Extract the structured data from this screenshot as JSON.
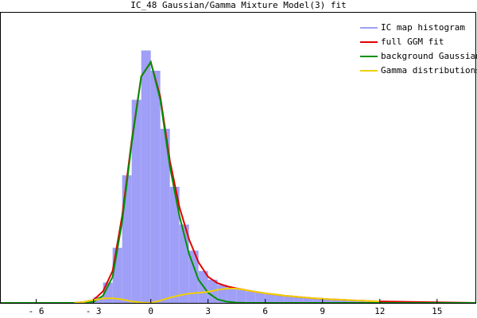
{
  "chart_data": {
    "type": "histogram",
    "title": "IC_48 Gaussian/Gamma Mixture Model(3) fit",
    "bins": [
      -3.5,
      -3,
      -2.5,
      -2,
      -1.5,
      -1,
      -0.5,
      0,
      0.5,
      1,
      1.5,
      2,
      2.5,
      3,
      3.5,
      4,
      4.5,
      5,
      5.5,
      6,
      6.5,
      7,
      7.5,
      8,
      8.5,
      9,
      9.5,
      10,
      10.5,
      11,
      11.5
    ],
    "series": [
      {
        "name": "IC map histogram",
        "color": "#9f9ff7",
        "values": [
          0.006,
          0.02,
          0.07,
          0.19,
          0.44,
          0.7,
          0.87,
          0.8,
          0.6,
          0.4,
          0.27,
          0.18,
          0.11,
          0.08,
          0.062,
          0.053,
          0.046,
          0.04,
          0.035,
          0.031,
          0.027,
          0.023,
          0.02,
          0.018,
          0.015,
          0.013,
          0.011,
          0.01,
          0.008,
          0.006
        ]
      },
      {
        "name": "full GGM fit",
        "color": "#e00000",
        "x": [
          -7.9,
          -4,
          -3.5,
          -3,
          -2.5,
          -2,
          -1.5,
          -1,
          -0.5,
          0,
          0.5,
          1,
          1.5,
          2,
          2.5,
          3,
          3.5,
          4,
          4.5,
          5,
          5.5,
          6,
          6.5,
          7,
          7.5,
          8,
          8.5,
          9,
          9.5,
          10,
          10.5,
          11,
          11.5,
          12,
          17.05
        ],
        "values": [
          0,
          0,
          0.003,
          0.01,
          0.04,
          0.11,
          0.3,
          0.56,
          0.78,
          0.83,
          0.71,
          0.49,
          0.33,
          0.22,
          0.14,
          0.09,
          0.068,
          0.057,
          0.05,
          0.044,
          0.038,
          0.033,
          0.029,
          0.025,
          0.022,
          0.019,
          0.016,
          0.014,
          0.012,
          0.011,
          0.009,
          0.008,
          0.006,
          0.005,
          0
        ]
      },
      {
        "name": "background Gaussian",
        "color": "#009000",
        "x": [
          -7.9,
          -4,
          -3.5,
          -3,
          -2.5,
          -2,
          -1.5,
          -1,
          -0.5,
          0,
          0.5,
          1,
          1.5,
          2,
          2.5,
          3,
          3.5,
          4,
          4.5,
          5,
          17.05
        ],
        "values": [
          0,
          0,
          0.001,
          0.004,
          0.025,
          0.09,
          0.28,
          0.55,
          0.78,
          0.83,
          0.7,
          0.47,
          0.3,
          0.17,
          0.08,
          0.035,
          0.012,
          0.004,
          0.001,
          0,
          0
        ]
      },
      {
        "name": "Gamma distributions",
        "color": "#f0d000",
        "x": [
          -4,
          -3.5,
          -3,
          -2.5,
          -2,
          -1.5,
          -1,
          -0.5,
          0,
          0.5,
          1,
          1.5,
          2,
          2.5,
          3,
          3.5,
          4,
          4.5,
          5,
          5.5,
          6,
          6.5,
          7,
          7.5,
          8,
          8.5,
          9,
          9.5,
          10,
          10.5,
          11,
          11.5,
          12
        ],
        "values": [
          0,
          0.003,
          0.01,
          0.015,
          0.016,
          0.012,
          0.005,
          0.001,
          0,
          0.008,
          0.018,
          0.026,
          0.032,
          0.035,
          0.038,
          0.045,
          0.05,
          0.049,
          0.044,
          0.038,
          0.033,
          0.029,
          0.025,
          0.022,
          0.019,
          0.016,
          0.014,
          0.012,
          0.011,
          0.009,
          0.008,
          0.006,
          0.005
        ]
      }
    ],
    "xlim": [
      -7.9,
      17.05
    ],
    "ylim": [
      0,
      1
    ],
    "xticks": [
      {
        "value": -6,
        "label": "- 6"
      },
      {
        "value": -3,
        "label": "- 3"
      },
      0,
      3,
      6,
      9,
      12,
      15
    ],
    "legend": "upper right"
  }
}
